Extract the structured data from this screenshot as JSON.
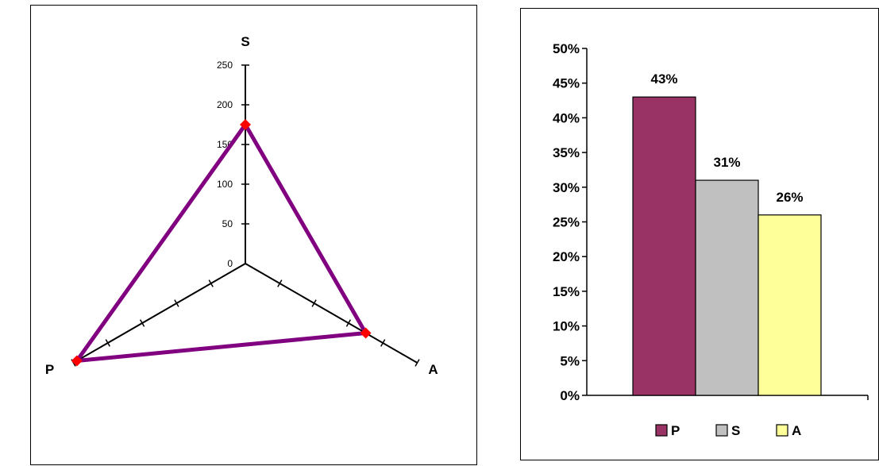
{
  "chart_data": [
    {
      "type": "radar",
      "axes": [
        "S",
        "A",
        "P"
      ],
      "ticks": [
        0,
        50,
        100,
        150,
        200,
        250
      ],
      "rlim": [
        0,
        250
      ],
      "series": [
        {
          "values": [
            175,
            175,
            245
          ],
          "color": "#800080",
          "marker_color": "#ff0000"
        }
      ],
      "grid": false,
      "legend": "none"
    },
    {
      "type": "bar",
      "categories": [
        "P",
        "S",
        "A"
      ],
      "values": [
        0.43,
        0.31,
        0.26
      ],
      "data_labels": [
        "43%",
        "31%",
        "26%"
      ],
      "colors": [
        "#993366",
        "#c0c0c0",
        "#ffff99"
      ],
      "ylim": [
        0,
        0.5
      ],
      "yticks": [
        "0%",
        "5%",
        "10%",
        "15%",
        "20%",
        "25%",
        "30%",
        "35%",
        "40%",
        "45%",
        "50%"
      ],
      "legend": [
        "P",
        "S",
        "A"
      ],
      "legend_placement": "bottom",
      "grid": false
    }
  ]
}
